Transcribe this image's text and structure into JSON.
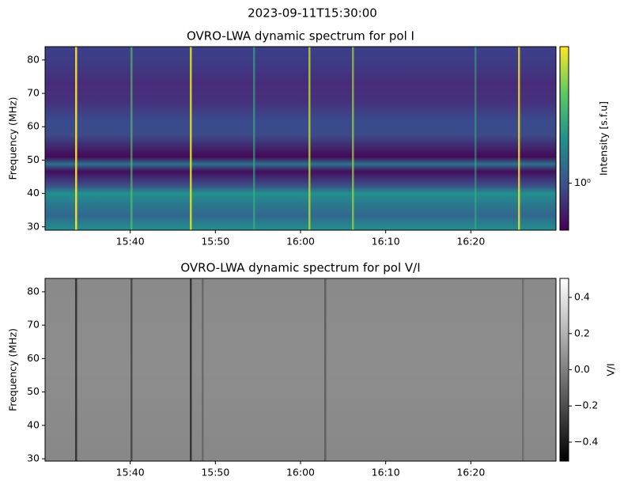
{
  "title": "2023-09-11T15:30:00",
  "chart_data": [
    {
      "type": "heatmap",
      "title": "OVRO-LWA dynamic spectrum for pol I",
      "y_label": "Frequency (MHz)",
      "xlim": [
        "15:30",
        "16:30"
      ],
      "xticks": [
        "15:40",
        "15:50",
        "16:00",
        "16:10",
        "16:20"
      ],
      "ylim": [
        29,
        84
      ],
      "yticks": [
        30,
        40,
        50,
        60,
        70,
        80
      ],
      "colormap": "viridis",
      "colorbar": {
        "label": "Intensity [s.f.u]",
        "scale": "log",
        "lim": [
          0.65,
          3.5
        ],
        "ticks": [
          {
            "value": 1,
            "label": "10⁰"
          }
        ]
      }
    },
    {
      "type": "heatmap",
      "title": "OVRO-LWA dynamic spectrum for pol V/I",
      "y_label": "Frequency (MHz)",
      "xlim": [
        "15:30",
        "16:30"
      ],
      "xticks": [
        "15:40",
        "15:50",
        "16:00",
        "16:10",
        "16:20"
      ],
      "ylim": [
        29.3,
        84
      ],
      "yticks": [
        30,
        40,
        50,
        60,
        70,
        80
      ],
      "colormap": "gray",
      "colorbar": {
        "label": "V/I",
        "scale": "linear",
        "lim": [
          -0.505,
          0.505
        ],
        "ticks": [
          {
            "value": -0.4,
            "label": "−0.4"
          },
          {
            "value": -0.2,
            "label": "−0.2"
          },
          {
            "value": 0,
            "label": "0.0"
          },
          0.2,
          0.4
        ]
      }
    }
  ]
}
